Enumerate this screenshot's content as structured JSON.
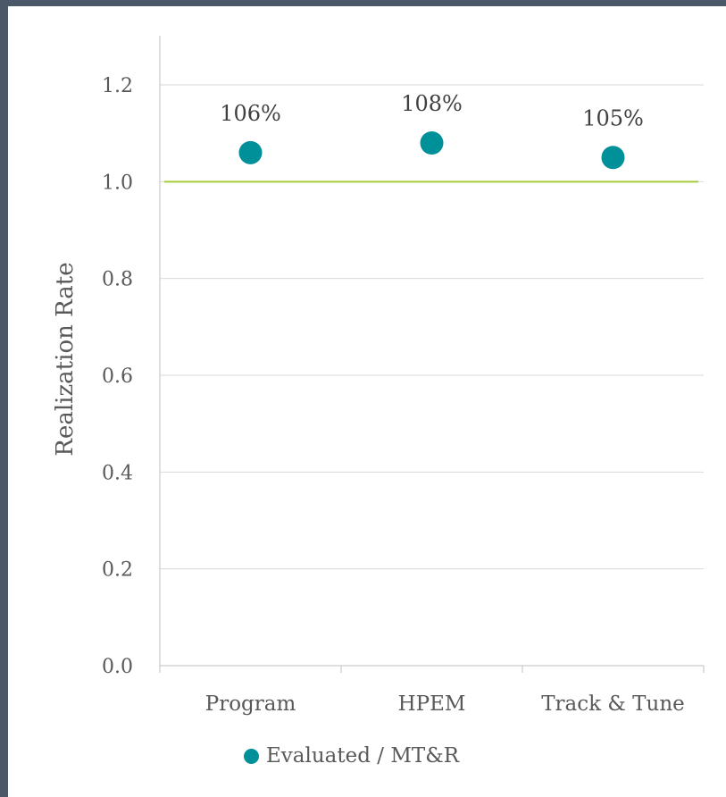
{
  "chart_data": {
    "type": "scatter",
    "categories": [
      "Program",
      "HPEM",
      "Track & Tune"
    ],
    "series": [
      {
        "name": "Evaluated / MT&R",
        "values": [
          1.06,
          1.08,
          1.05
        ],
        "labels": [
          "106%",
          "108%",
          "105%"
        ],
        "color": "#009099"
      }
    ],
    "reference_line": {
      "value": 1.0,
      "color": "#a6cc3a"
    },
    "ylabel": "Realization Rate",
    "xlabel": "",
    "ylim": [
      0.0,
      1.2
    ],
    "yticks": [
      "0.0",
      "0.2",
      "0.4",
      "0.6",
      "0.8",
      "1.0",
      "1.2"
    ],
    "grid": true,
    "legend_position": "bottom"
  }
}
